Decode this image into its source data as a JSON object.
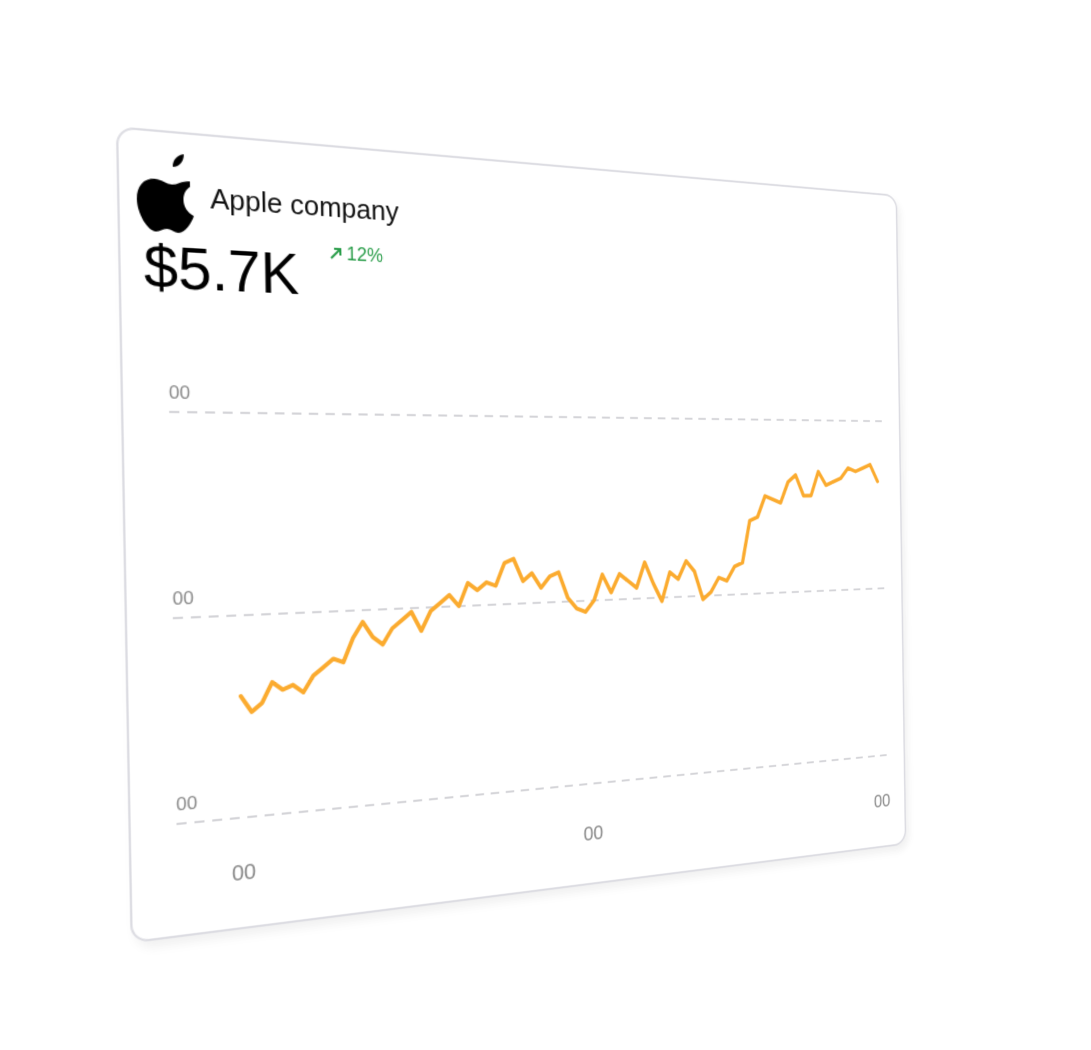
{
  "header": {
    "company": "Apple company",
    "price": "$5.7K",
    "change": "12%"
  },
  "chart_data": {
    "type": "line",
    "x": [
      0,
      1,
      2,
      3,
      4,
      5,
      6,
      7,
      8,
      9,
      10,
      11,
      12,
      13,
      14,
      15,
      16,
      17,
      18,
      19,
      20,
      21,
      22,
      23,
      24,
      25,
      26,
      27,
      28,
      29,
      30,
      31,
      32,
      33,
      34,
      35,
      36,
      37,
      38,
      39,
      40,
      41,
      42,
      43,
      44,
      45,
      46,
      47,
      48,
      49,
      50,
      51,
      52,
      53,
      54,
      55,
      56,
      57,
      58,
      59,
      60,
      61,
      62,
      63,
      64,
      65,
      66,
      67,
      68,
      69,
      70,
      71,
      72,
      73
    ],
    "series": [
      {
        "color": "#fbab2f",
        "values": [
          30,
          26,
          28,
          33,
          31,
          32,
          30,
          34,
          36,
          38,
          37,
          43,
          47,
          43,
          41,
          45,
          47,
          49,
          44,
          49,
          51,
          53,
          50,
          56,
          54,
          56,
          55,
          61,
          62,
          56,
          58,
          54,
          57,
          58,
          51,
          48,
          47,
          50,
          57,
          52,
          57,
          55,
          53,
          60,
          54,
          49,
          57,
          55,
          60,
          57,
          49,
          51,
          55,
          54,
          58,
          59,
          71,
          72,
          78,
          77,
          76,
          82,
          84,
          78,
          78,
          85,
          81,
          82,
          83,
          86,
          85,
          86,
          87,
          82
        ]
      }
    ],
    "xlim": [
      0,
      73
    ],
    "xticks": [
      {
        "value": 0,
        "label": "00"
      },
      {
        "value": 36.5,
        "label": "00"
      },
      {
        "value": 73,
        "label": "00"
      }
    ],
    "ylim": [
      0,
      100
    ],
    "yticks": [
      {
        "value": 0,
        "label": "00"
      },
      {
        "value": 50,
        "label": "00"
      },
      {
        "value": 100,
        "label": "00"
      }
    ],
    "grid": true
  }
}
